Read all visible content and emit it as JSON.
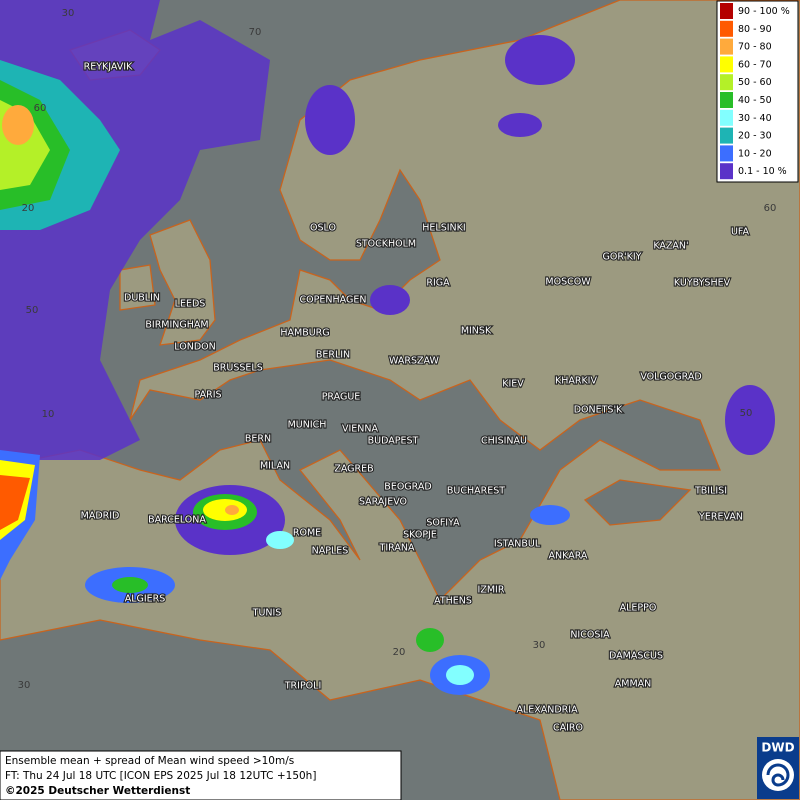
{
  "legend": {
    "entries": [
      {
        "label": "90 - 100 %",
        "color": "#b40000"
      },
      {
        "label": "80 - 90",
        "color": "#ff5a00"
      },
      {
        "label": "70 - 80",
        "color": "#ffaa3c"
      },
      {
        "label": "60 - 70",
        "color": "#ffff00"
      },
      {
        "label": "50 - 60",
        "color": "#b4f028"
      },
      {
        "label": "40 - 50",
        "color": "#28be28"
      },
      {
        "label": "30 - 40",
        "color": "#82ffff"
      },
      {
        "label": "20 - 30",
        "color": "#1eb4b4"
      },
      {
        "label": "10 - 20",
        "color": "#3c6eff"
      },
      {
        "label": "0.1 - 10 %",
        "color": "#5a32c8"
      }
    ]
  },
  "map": {
    "grid_labels": [
      "30",
      "70",
      "60",
      "20",
      "50",
      "10",
      "30",
      "20",
      "30",
      "60",
      "50"
    ],
    "cities": [
      "REYKJAVIK",
      "OSLO",
      "STOCKHOLM",
      "HELSINKI",
      "DUBLIN",
      "LEEDS",
      "BIRMINGHAM",
      "LONDON",
      "COPENHAGEN",
      "RIGA",
      "HAMBURG",
      "BERLIN",
      "MINSK",
      "MOSCOW",
      "GOR'KIY",
      "KAZAN'",
      "UFA",
      "KUYBYSHEV",
      "BRUSSELS",
      "WARSZAW",
      "PARIS",
      "PRAGUE",
      "KIEV",
      "KHARKIV",
      "VOLGOGRAD",
      "DONETS'K",
      "MUNICH",
      "VIENNA",
      "BERN",
      "BUDAPEST",
      "CHISINAU",
      "MILAN",
      "ZAGREB",
      "BEOGRAD",
      "BUCHAREST",
      "TBILISI",
      "MADRID",
      "BARCELONA",
      "SARAJEVO",
      "SOFIYA",
      "YEREVAN",
      "ROME",
      "SKOPJE",
      "ISTANBUL",
      "ANKARA",
      "NAPLES",
      "TIRANA",
      "ALGIERS",
      "ATHENS",
      "IZMIR",
      "ALEPPO",
      "TUNIS",
      "NICOSIA",
      "DAMASCUS",
      "AMMAN",
      "TRIPOLI",
      "ALEXANDRIA",
      "CAIRO"
    ]
  },
  "footer": {
    "lines": [
      "Ensemble mean + spread of Mean wind speed >10m/s",
      "FT: Thu 24 Jul 18 UTC [ICON EPS 2025 Jul 18 12UTC +150h]",
      "©2025 Deutscher Wetterdienst"
    ]
  },
  "logo": "DWD"
}
